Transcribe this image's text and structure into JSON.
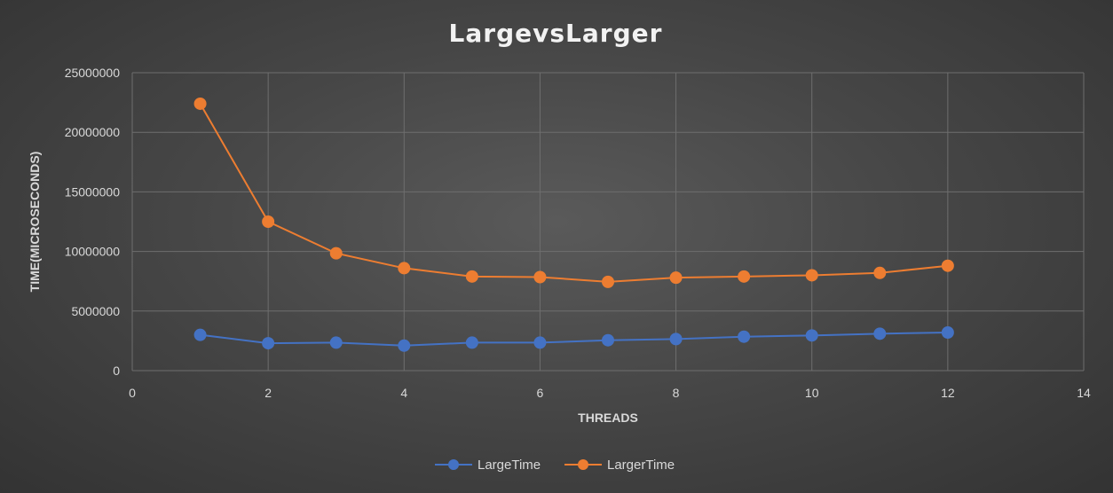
{
  "chart_data": {
    "type": "scatter",
    "title": "LargevsLarger",
    "xlabel": "THREADS",
    "ylabel": "TIME(MICROSECONDS)",
    "xlim": [
      0,
      14
    ],
    "ylim": [
      0,
      25000000
    ],
    "xticks": [
      "0",
      "2",
      "4",
      "6",
      "8",
      "10",
      "12",
      "14"
    ],
    "yticks": [
      "0",
      "5000000",
      "10000000",
      "15000000",
      "20000000",
      "25000000"
    ],
    "grid": true,
    "legend_position": "bottom",
    "x": [
      1,
      2,
      3,
      4,
      5,
      6,
      7,
      8,
      9,
      10,
      11,
      12
    ],
    "series": [
      {
        "name": "LargeTime",
        "color": "#4472c4",
        "values": [
          3000000,
          2300000,
          2350000,
          2100000,
          2350000,
          2350000,
          2550000,
          2650000,
          2850000,
          2950000,
          3100000,
          3200000
        ]
      },
      {
        "name": "LargerTime",
        "color": "#ed7d31",
        "values": [
          22400000,
          12500000,
          9850000,
          8600000,
          7900000,
          7850000,
          7450000,
          7800000,
          7900000,
          8000000,
          8200000,
          8800000
        ]
      }
    ]
  }
}
